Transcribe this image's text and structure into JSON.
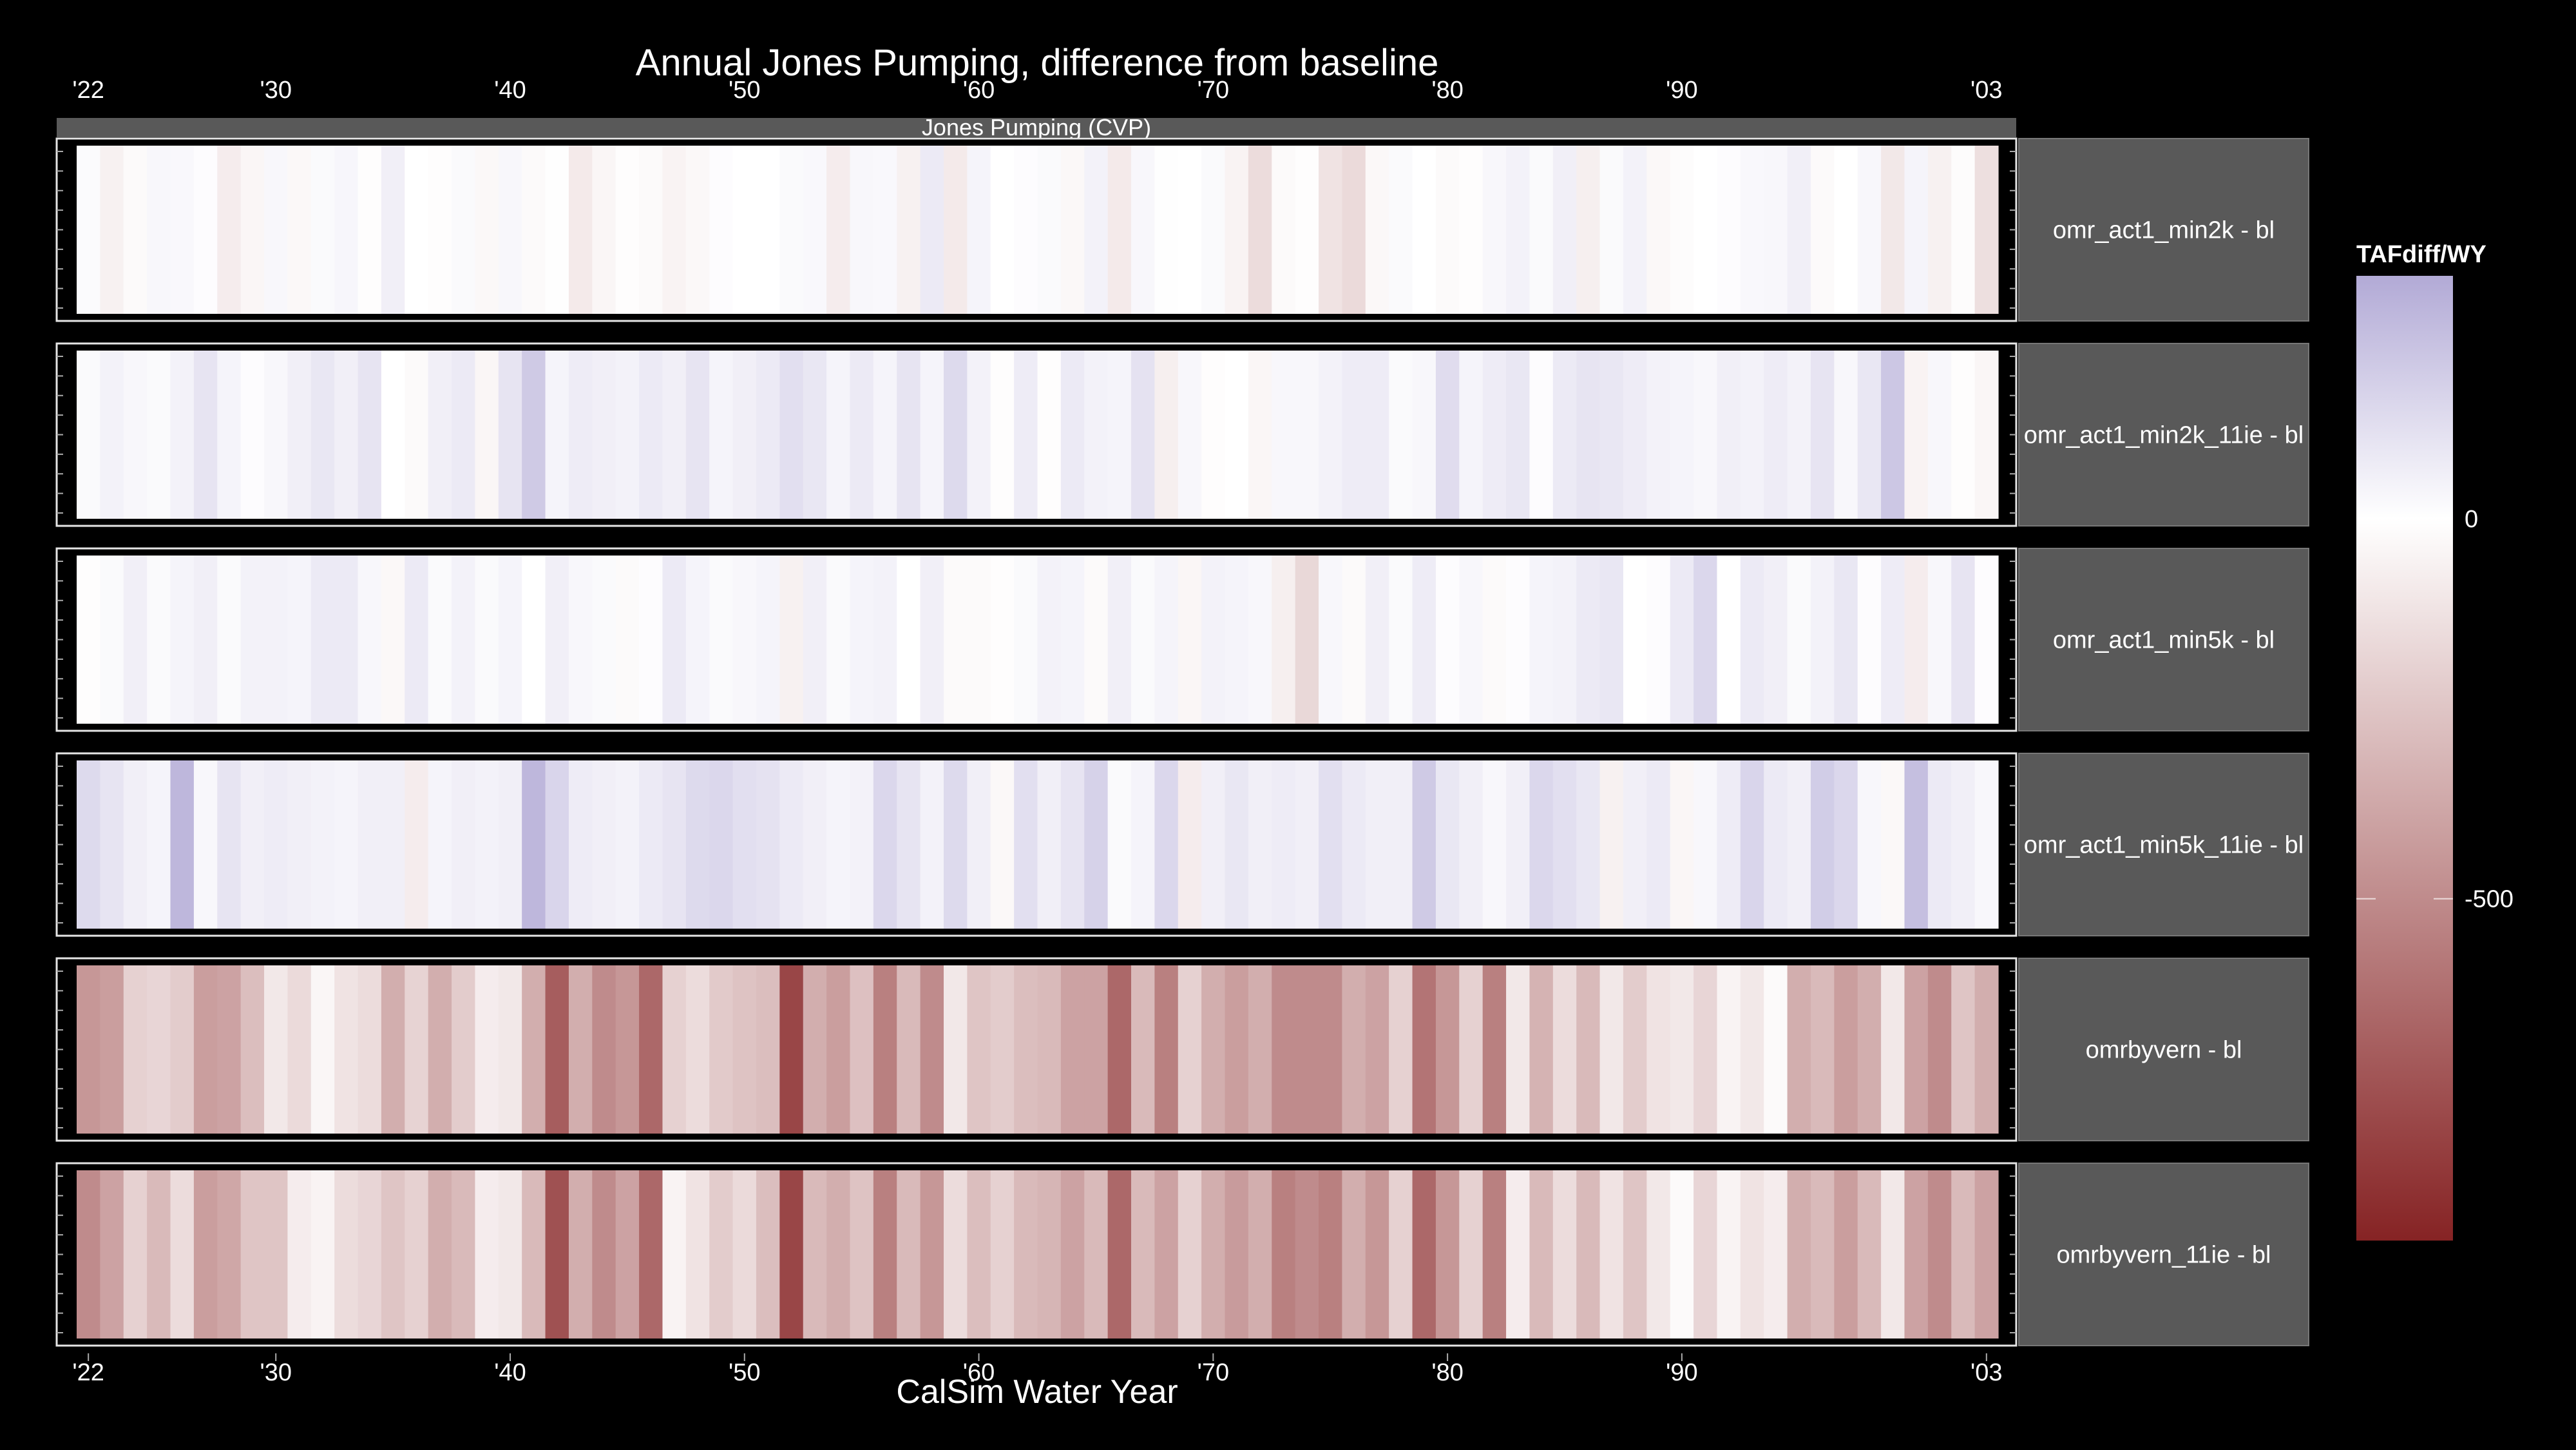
{
  "chart_data": {
    "type": "heatmap",
    "title": "Annual Jones Pumping, difference from baseline",
    "subtitle": "Jones Pumping (CVP)",
    "xlabel": "CalSim Water Year",
    "ylabel": "",
    "xlim": [
      1922,
      2003
    ],
    "x_ticks": [
      1922,
      1930,
      1940,
      1950,
      1960,
      1970,
      1980,
      1990,
      2003
    ],
    "x_tick_labels": [
      "'22",
      "'30",
      "'40",
      "'50",
      "'60",
      "'70",
      "'80",
      "'90",
      "'03"
    ],
    "legend": {
      "title": "TAFdiff/WY",
      "placement": "right",
      "range": [
        -950,
        320
      ],
      "tick_values": [
        0,
        -500
      ],
      "tick_labels": [
        "0",
        "-500"
      ],
      "low_color": "#862324",
      "mid_color": "#FFFFFF",
      "high_color": "#B2AAD6"
    },
    "years": [
      1922,
      1923,
      1924,
      1925,
      1926,
      1927,
      1928,
      1929,
      1930,
      1931,
      1932,
      1933,
      1934,
      1935,
      1936,
      1937,
      1938,
      1939,
      1940,
      1941,
      1942,
      1943,
      1944,
      1945,
      1946,
      1947,
      1948,
      1949,
      1950,
      1951,
      1952,
      1953,
      1954,
      1955,
      1956,
      1957,
      1958,
      1959,
      1960,
      1961,
      1962,
      1963,
      1964,
      1965,
      1966,
      1967,
      1968,
      1969,
      1970,
      1971,
      1972,
      1973,
      1974,
      1975,
      1976,
      1977,
      1978,
      1979,
      1980,
      1981,
      1982,
      1983,
      1984,
      1985,
      1986,
      1987,
      1988,
      1989,
      1990,
      1991,
      1992,
      1993,
      1994,
      1995,
      1996,
      1997,
      1998,
      1999,
      2000,
      2001,
      2002,
      2003
    ],
    "series": [
      {
        "name": "omr_act1_min2k - bl",
        "values": [
          15,
          -60,
          -20,
          30,
          25,
          10,
          -80,
          -40,
          30,
          -30,
          20,
          35,
          -10,
          60,
          0,
          -10,
          20,
          -30,
          30,
          -20,
          -5,
          -90,
          -40,
          -10,
          -20,
          -50,
          -30,
          10,
          0,
          0,
          20,
          25,
          -80,
          30,
          25,
          -60,
          80,
          -90,
          40,
          0,
          10,
          20,
          -30,
          50,
          -90,
          30,
          5,
          0,
          20,
          -50,
          -150,
          -20,
          -10,
          -120,
          -160,
          -30,
          20,
          0,
          -20,
          -10,
          30,
          50,
          20,
          60,
          -70,
          20,
          50,
          -30,
          -15,
          0,
          10,
          25,
          30,
          60,
          -20,
          0,
          30,
          -100,
          40,
          -60,
          -15,
          -140
        ]
      },
      {
        "name": "omr_act1_min2k_11ie - bl",
        "values": [
          20,
          50,
          30,
          20,
          50,
          100,
          40,
          10,
          30,
          60,
          90,
          60,
          100,
          0,
          -20,
          60,
          80,
          -40,
          100,
          200,
          40,
          70,
          60,
          50,
          80,
          60,
          100,
          40,
          60,
          80,
          120,
          90,
          40,
          80,
          40,
          100,
          40,
          140,
          50,
          -10,
          70,
          -10,
          80,
          50,
          40,
          110,
          -70,
          30,
          -10,
          0,
          -40,
          30,
          30,
          50,
          70,
          70,
          20,
          30,
          130,
          40,
          70,
          90,
          10,
          80,
          100,
          90,
          70,
          50,
          40,
          30,
          60,
          50,
          70,
          50,
          100,
          30,
          90,
          210,
          -50,
          30,
          -10,
          -40
        ]
      },
      {
        "name": "omr_act1_min5k - bl",
        "values": [
          -10,
          20,
          60,
          20,
          40,
          60,
          20,
          50,
          50,
          40,
          80,
          80,
          30,
          -30,
          80,
          20,
          50,
          20,
          40,
          0,
          60,
          30,
          20,
          -20,
          10,
          80,
          40,
          20,
          30,
          40,
          -60,
          60,
          20,
          40,
          50,
          0,
          60,
          -20,
          -20,
          -10,
          20,
          50,
          40,
          -20,
          60,
          20,
          40,
          -40,
          50,
          40,
          30,
          -70,
          -170,
          30,
          -20,
          60,
          20,
          70,
          10,
          30,
          -20,
          10,
          40,
          50,
          80,
          90,
          0,
          10,
          80,
          150,
          0,
          80,
          60,
          20,
          50,
          90,
          10,
          70,
          -80,
          30,
          100,
          10
        ]
      },
      {
        "name": "omr_act1_min5k_11ie - bl",
        "values": [
          140,
          100,
          60,
          40,
          270,
          30,
          100,
          60,
          70,
          60,
          50,
          40,
          60,
          60,
          -80,
          40,
          60,
          50,
          60,
          270,
          160,
          70,
          60,
          50,
          80,
          100,
          140,
          150,
          120,
          110,
          80,
          60,
          40,
          50,
          150,
          100,
          50,
          140,
          60,
          -30,
          120,
          60,
          100,
          170,
          20,
          40,
          150,
          -80,
          60,
          90,
          60,
          70,
          60,
          120,
          80,
          60,
          60,
          200,
          90,
          60,
          30,
          60,
          150,
          120,
          90,
          -60,
          60,
          80,
          -40,
          30,
          70,
          160,
          80,
          60,
          190,
          150,
          30,
          -30,
          240,
          80,
          60,
          30
        ]
      },
      {
        "name": "omrbyvern - bl",
        "values": [
          -450,
          -420,
          -200,
          -180,
          -220,
          -420,
          -400,
          -280,
          -100,
          -160,
          -40,
          -120,
          -150,
          -350,
          -190,
          -350,
          -220,
          -80,
          -100,
          -350,
          -700,
          -350,
          -500,
          -450,
          -650,
          -200,
          -150,
          -230,
          -260,
          -280,
          -800,
          -350,
          -420,
          -270,
          -550,
          -300,
          -500,
          -100,
          -250,
          -220,
          -280,
          -300,
          -400,
          -400,
          -650,
          -300,
          -550,
          -200,
          -350,
          -420,
          -350,
          -500,
          -500,
          -500,
          -350,
          -400,
          -200,
          -600,
          -450,
          -200,
          -550,
          -100,
          -330,
          -150,
          -300,
          -100,
          -220,
          -120,
          -100,
          -180,
          -50,
          -100,
          -20,
          -350,
          -300,
          -420,
          -350,
          -100,
          -400,
          -500,
          -250,
          -350
        ]
      },
      {
        "name": "omrbyvern_11ie - bl",
        "values": [
          -500,
          -400,
          -200,
          -300,
          -150,
          -420,
          -380,
          -250,
          -250,
          -80,
          -50,
          -150,
          -180,
          -250,
          -200,
          -350,
          -300,
          -80,
          -100,
          -300,
          -750,
          -350,
          -500,
          -400,
          -650,
          -50,
          -120,
          -220,
          -160,
          -280,
          -800,
          -300,
          -350,
          -260,
          -550,
          -300,
          -450,
          -150,
          -280,
          -200,
          -300,
          -320,
          -400,
          -300,
          -650,
          -300,
          -400,
          -200,
          -350,
          -430,
          -350,
          -550,
          -500,
          -550,
          -350,
          -450,
          -200,
          -650,
          -450,
          -200,
          -550,
          -80,
          -300,
          -150,
          -300,
          -120,
          -250,
          -100,
          -20,
          -180,
          -50,
          -120,
          -80,
          -350,
          -300,
          -420,
          -300,
          -100,
          -400,
          -500,
          -300,
          -400
        ]
      }
    ]
  }
}
